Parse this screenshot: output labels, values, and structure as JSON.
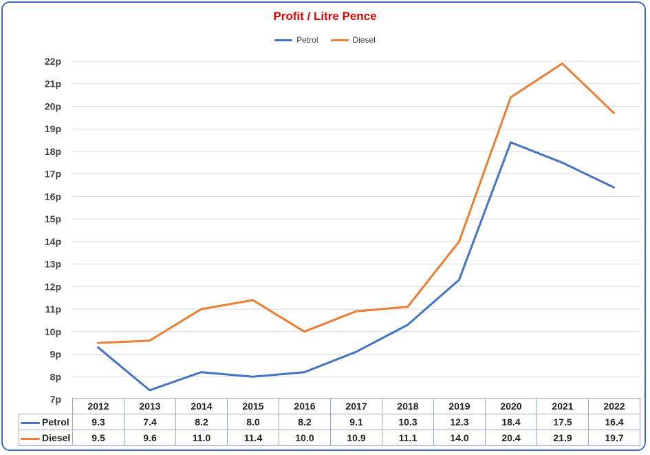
{
  "chart_data": {
    "type": "line",
    "title": "Profit / Litre Pence",
    "categories": [
      "2012",
      "2013",
      "2014",
      "2015",
      "2016",
      "2017",
      "2018",
      "2019",
      "2020",
      "2021",
      "2022"
    ],
    "series": [
      {
        "name": "Petrol",
        "color": "#4472c4",
        "values": [
          9.3,
          7.4,
          8.2,
          8.0,
          8.2,
          9.1,
          10.3,
          12.3,
          18.4,
          17.5,
          16.4
        ],
        "display": [
          "9.3",
          "7.4",
          "8.2",
          "8.0",
          "8.2",
          "9.1",
          "10.3",
          "12.3",
          "18.4",
          "17.5",
          "16.4"
        ]
      },
      {
        "name": "Diesel",
        "color": "#ed7d31",
        "values": [
          9.5,
          9.6,
          11.0,
          11.4,
          10.0,
          10.9,
          11.1,
          14.0,
          20.4,
          21.9,
          19.7
        ],
        "display": [
          "9.5",
          "9.6",
          "11.0",
          "11.4",
          "10.0",
          "10.9",
          "11.1",
          "14.0",
          "20.4",
          "21.9",
          "19.7"
        ]
      }
    ],
    "ylim": [
      7,
      22
    ],
    "yticks": [
      "7p",
      "8p",
      "9p",
      "10p",
      "11p",
      "12p",
      "13p",
      "14p",
      "15p",
      "16p",
      "17p",
      "18p",
      "19p",
      "20p",
      "21p",
      "22p"
    ],
    "legend": "top-center",
    "grid": true,
    "data_table": true
  },
  "colors": {
    "title": "#e00000",
    "border": "#3d6cc0",
    "grid": "#d9d9d9"
  }
}
